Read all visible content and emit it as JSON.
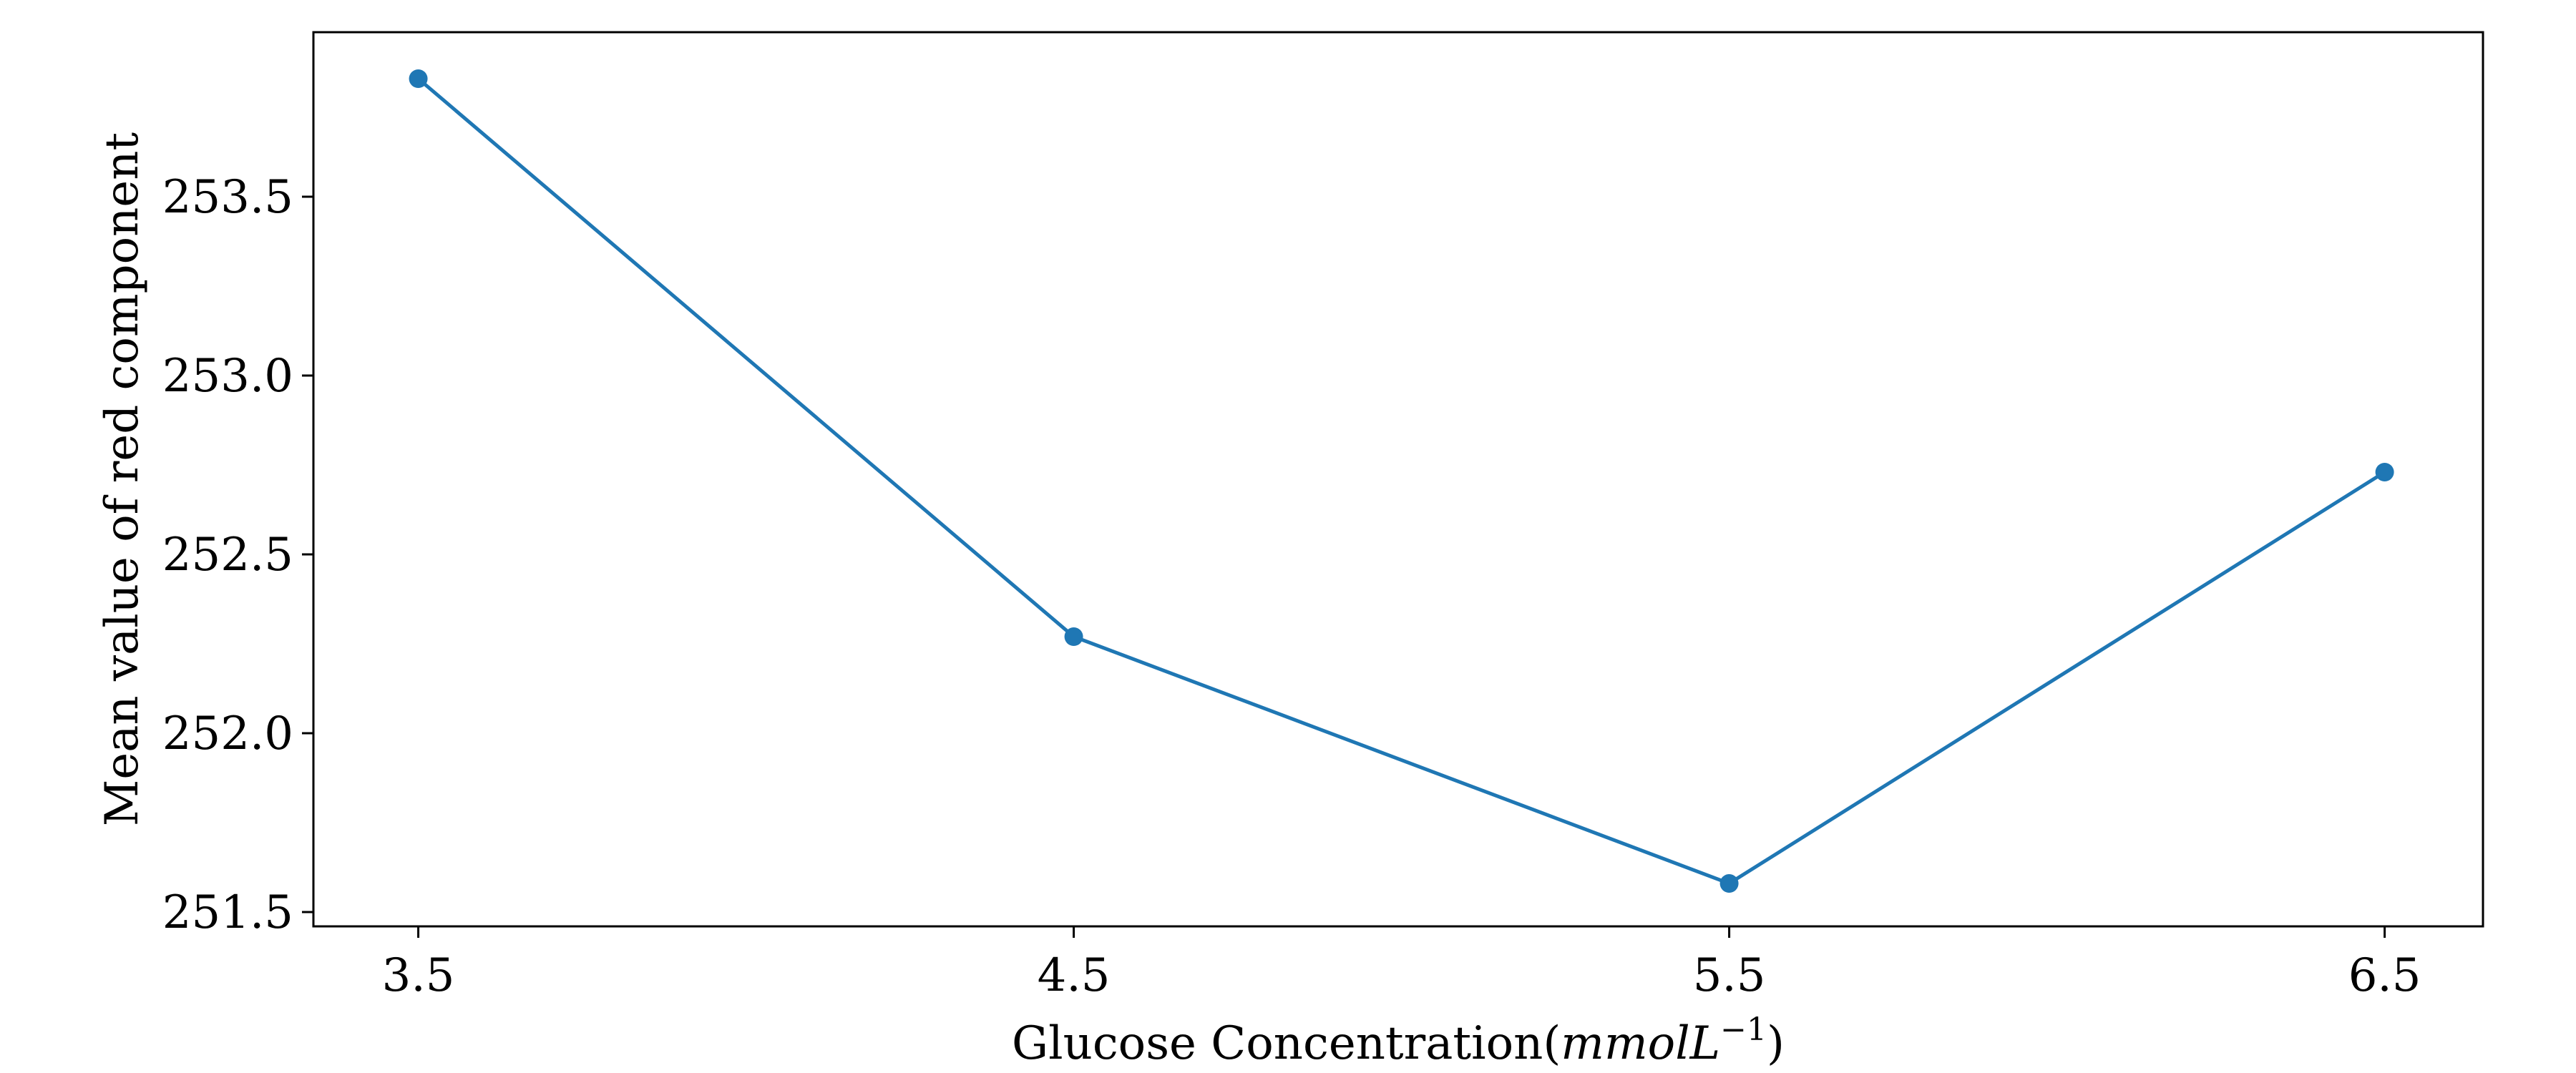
{
  "chart_data": {
    "type": "line",
    "xlabel": "Glucose Concentration(",
    "xlabel_math": "mmolL",
    "xlabel_exponent": "−1",
    "xlabel_close": ")",
    "ylabel": "Mean value of red component",
    "x": [
      3.5,
      4.5,
      5.5,
      6.5
    ],
    "x_tick_labels": [
      "3.5",
      "4.5",
      "5.5",
      "6.5"
    ],
    "y_ticks": [
      251.5,
      252.0,
      252.5,
      253.0,
      253.5
    ],
    "y_tick_labels": [
      "251.5",
      "252.0",
      "252.5",
      "253.0",
      "253.5"
    ],
    "xlim": [
      3.34,
      6.65
    ],
    "ylim": [
      251.46,
      253.96
    ],
    "series": [
      {
        "values": [
          253.83,
          252.27,
          251.58,
          252.73
        ],
        "color": "#1f77b4"
      }
    ],
    "grid": false,
    "markers": true
  }
}
